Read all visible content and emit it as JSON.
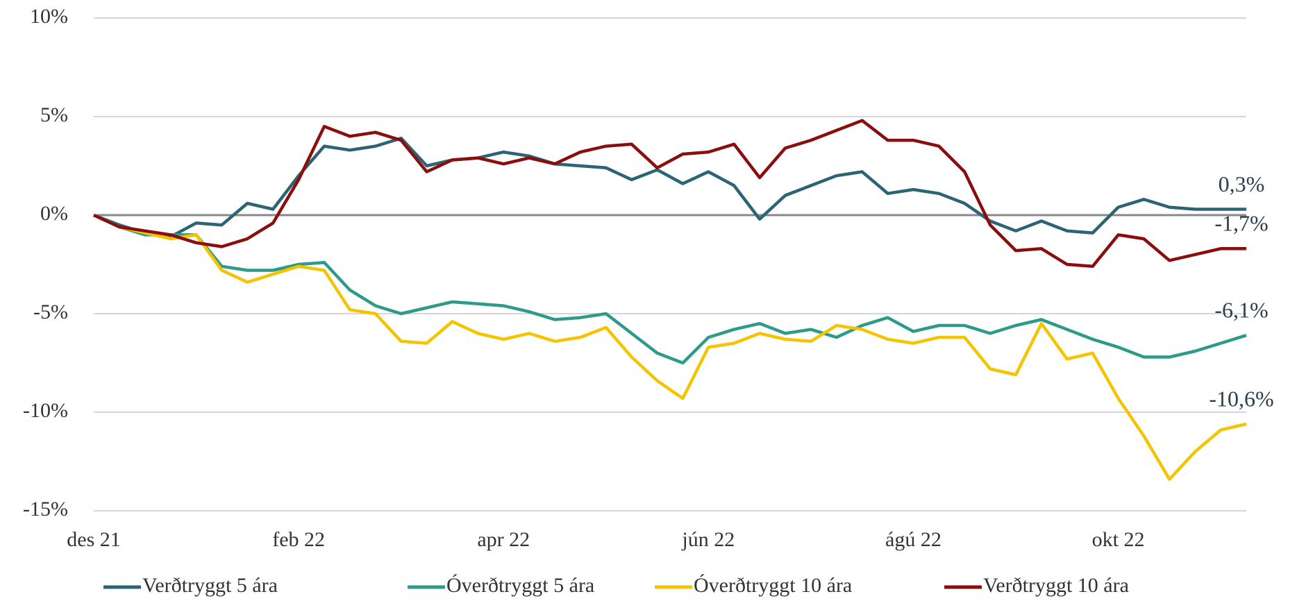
{
  "chart_data": {
    "type": "line",
    "categories": [
      "des 21",
      null,
      null,
      null,
      null,
      null,
      null,
      null,
      "feb 22",
      null,
      null,
      null,
      null,
      null,
      null,
      null,
      "apr 22",
      null,
      null,
      null,
      null,
      null,
      null,
      null,
      "jún 22",
      null,
      null,
      null,
      null,
      null,
      null,
      null,
      "ágú 22",
      null,
      null,
      null,
      null,
      null,
      null,
      null,
      "okt 22",
      null,
      null,
      null,
      null,
      null
    ],
    "ylim": [
      -15,
      10
    ],
    "yticks": [
      {
        "value": -15,
        "label": "-15%"
      },
      {
        "value": -10,
        "label": "-10%"
      },
      {
        "value": -5,
        "label": "-5%"
      },
      {
        "value": 0,
        "label": "0%"
      },
      {
        "value": 5,
        "label": "5%"
      },
      {
        "value": 10,
        "label": "10%"
      }
    ],
    "grid": true,
    "legend": "bottom",
    "series": [
      {
        "name": "Verðtryggt 5 ára",
        "color": "#2a6475",
        "end_label": "0,3%",
        "values": [
          0,
          -0.5,
          -0.9,
          -1.1,
          -0.4,
          -0.5,
          0.6,
          0.3,
          2.0,
          3.5,
          3.3,
          3.5,
          3.9,
          2.5,
          2.8,
          2.9,
          3.2,
          3.0,
          2.6,
          2.5,
          2.4,
          1.8,
          2.3,
          1.6,
          2.2,
          1.5,
          -0.2,
          1.0,
          1.5,
          2.0,
          2.2,
          1.1,
          1.3,
          1.1,
          0.6,
          -0.3,
          -0.8,
          -0.3,
          -0.8,
          -0.9,
          0.4,
          0.8,
          0.4,
          0.3,
          0.3,
          0.3
        ]
      },
      {
        "name": "Óverðtryggt 5 ára",
        "color": "#2e9a8a",
        "end_label": "-6,1%",
        "values": [
          0,
          -0.6,
          -1.0,
          -1.0,
          -1.0,
          -2.6,
          -2.8,
          -2.8,
          -2.5,
          -2.4,
          -3.8,
          -4.6,
          -5.0,
          -4.7,
          -4.4,
          -4.5,
          -4.6,
          -4.9,
          -5.3,
          -5.2,
          -5.0,
          -6.0,
          -7.0,
          -7.5,
          -6.2,
          -5.8,
          -5.5,
          -6.0,
          -5.8,
          -6.2,
          -5.6,
          -5.2,
          -5.9,
          -5.6,
          -5.6,
          -6.0,
          -5.6,
          -5.3,
          -5.8,
          -6.3,
          -6.7,
          -7.2,
          -7.2,
          -6.9,
          -6.5,
          -6.1
        ]
      },
      {
        "name": "Óverðtryggt 10 ára",
        "color": "#f5c400",
        "end_label": "-10,6%",
        "values": [
          0,
          -0.6,
          -0.9,
          -1.2,
          -1.0,
          -2.8,
          -3.4,
          -3.0,
          -2.6,
          -2.8,
          -4.8,
          -5.0,
          -6.4,
          -6.5,
          -5.4,
          -6.0,
          -6.3,
          -6.0,
          -6.4,
          -6.2,
          -5.7,
          -7.2,
          -8.4,
          -9.3,
          -6.7,
          -6.5,
          -6.0,
          -6.3,
          -6.4,
          -5.6,
          -5.8,
          -6.3,
          -6.5,
          -6.2,
          -6.2,
          -7.8,
          -8.1,
          -5.5,
          -7.3,
          -7.0,
          -9.3,
          -11.2,
          -13.4,
          -12.0,
          -10.9,
          -10.6
        ]
      },
      {
        "name": "Verðtryggt 10 ára",
        "color": "#8b0e0e",
        "end_label": "-1,7%",
        "values": [
          0,
          -0.6,
          -0.8,
          -1.0,
          -1.4,
          -1.6,
          -1.2,
          -0.4,
          1.8,
          4.5,
          4.0,
          4.2,
          3.8,
          2.2,
          2.8,
          2.9,
          2.6,
          2.9,
          2.6,
          3.2,
          3.5,
          3.6,
          2.4,
          3.1,
          3.2,
          3.6,
          1.9,
          3.4,
          3.8,
          4.3,
          4.8,
          3.8,
          3.8,
          3.5,
          2.2,
          -0.5,
          -1.8,
          -1.7,
          -2.5,
          -2.6,
          -1.0,
          -1.2,
          -2.3,
          -2.0,
          -1.7,
          -1.7
        ]
      }
    ]
  }
}
